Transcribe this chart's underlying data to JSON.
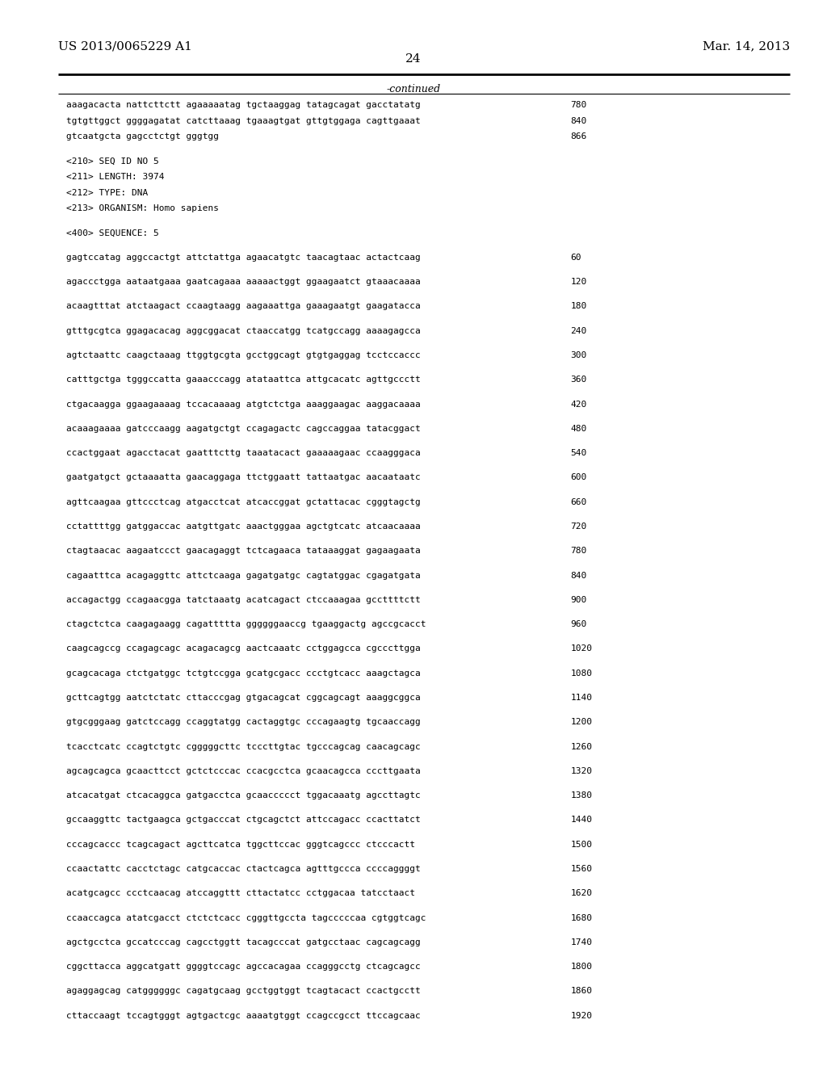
{
  "patent_number": "US 2013/0065229 A1",
  "date": "Mar. 14, 2013",
  "page_number": "24",
  "continued_label": "-continued",
  "background_color": "#ffffff",
  "text_color": "#000000",
  "font_size_header": 11,
  "font_size_body": 9,
  "lines": [
    {
      "text": "aaagacacta nattcttctt agaaaaatag tgctaaggag tatagcagat gacctatatg",
      "num": "780"
    },
    {
      "text": "tgtgttggct ggggagatat catcttaaag tgaaagtgat gttgtggaga cagttgaaat",
      "num": "840"
    },
    {
      "text": "gtcaatgcta gagcctctgt gggtgg",
      "num": "866"
    },
    {
      "text": "",
      "num": ""
    },
    {
      "text": "<210> SEQ ID NO 5",
      "num": ""
    },
    {
      "text": "<211> LENGTH: 3974",
      "num": ""
    },
    {
      "text": "<212> TYPE: DNA",
      "num": ""
    },
    {
      "text": "<213> ORGANISM: Homo sapiens",
      "num": ""
    },
    {
      "text": "",
      "num": ""
    },
    {
      "text": "<400> SEQUENCE: 5",
      "num": ""
    },
    {
      "text": "",
      "num": ""
    },
    {
      "text": "gagtccatag aggccactgt attctattga agaacatgtc taacagtaac actactcaag",
      "num": "60"
    },
    {
      "text": "",
      "num": ""
    },
    {
      "text": "agaccctgga aataatgaaa gaatcagaaa aaaaactggt ggaagaatct gtaaacaaaa",
      "num": "120"
    },
    {
      "text": "",
      "num": ""
    },
    {
      "text": "acaagtttat atctaagact ccaagtaagg aagaaattga gaaagaatgt gaagatacca",
      "num": "180"
    },
    {
      "text": "",
      "num": ""
    },
    {
      "text": "gtttgcgtca ggagacacag aggcggacat ctaaccatgg tcatgccagg aaaagagcca",
      "num": "240"
    },
    {
      "text": "",
      "num": ""
    },
    {
      "text": "agtctaattc caagctaaag ttggtgcgta gcctggcagt gtgtgaggag tcctccaccc",
      "num": "300"
    },
    {
      "text": "",
      "num": ""
    },
    {
      "text": "catttgctga tgggccatta gaaacccagg atataattca attgcacatc agttgccctt",
      "num": "360"
    },
    {
      "text": "",
      "num": ""
    },
    {
      "text": "ctgacaagga ggaagaaaag tccacaaaag atgtctctga aaaggaagac aaggacaaaa",
      "num": "420"
    },
    {
      "text": "",
      "num": ""
    },
    {
      "text": "acaaagaaaa gatcccaagg aagatgctgt ccagagactc cagccaggaa tatacggact",
      "num": "480"
    },
    {
      "text": "",
      "num": ""
    },
    {
      "text": "ccactggaat agacctacat gaatttcttg taaatacact gaaaaagaac ccaagggaca",
      "num": "540"
    },
    {
      "text": "",
      "num": ""
    },
    {
      "text": "gaatgatgct gctaaaatta gaacaggaga ttctggaatt tattaatgac aacaataatc",
      "num": "600"
    },
    {
      "text": "",
      "num": ""
    },
    {
      "text": "agttcaagaa gttccctcag atgacctcat atcaccggat gctattacac cgggtagctg",
      "num": "660"
    },
    {
      "text": "",
      "num": ""
    },
    {
      "text": "cctattttgg gatggaccac aatgttgatc aaactgggaa agctgtcatc atcaacaaaa",
      "num": "720"
    },
    {
      "text": "",
      "num": ""
    },
    {
      "text": "ctagtaacac aagaatccct gaacagaggt tctcagaaca tataaaggat gagaagaata",
      "num": "780"
    },
    {
      "text": "",
      "num": ""
    },
    {
      "text": "cagaatttca acagaggttc attctcaaga gagatgatgc cagtatggac cgagatgata",
      "num": "840"
    },
    {
      "text": "",
      "num": ""
    },
    {
      "text": "accagactgg ccagaacgga tatctaaatg acatcagact ctccaaagaa gccttttctt",
      "num": "900"
    },
    {
      "text": "",
      "num": ""
    },
    {
      "text": "ctagctctca caagagaagg cagattttta ggggggaaccg tgaaggactg agccgcacct",
      "num": "960"
    },
    {
      "text": "",
      "num": ""
    },
    {
      "text": "caagcagccg ccagagcagc acagacagcg aactcaaatc cctggagcca cgcccttgga",
      "num": "1020"
    },
    {
      "text": "",
      "num": ""
    },
    {
      "text": "gcagcacaga ctctgatggc tctgtccgga gcatgcgacc ccctgtcacc aaagctagca",
      "num": "1080"
    },
    {
      "text": "",
      "num": ""
    },
    {
      "text": "gcttcagtgg aatctctatc cttacccgag gtgacagcat cggcagcagt aaaggcggca",
      "num": "1140"
    },
    {
      "text": "",
      "num": ""
    },
    {
      "text": "gtgcgggaag gatctccagg ccaggtatgg cactaggtgc cccagaagtg tgcaaccagg",
      "num": "1200"
    },
    {
      "text": "",
      "num": ""
    },
    {
      "text": "tcacctcatc ccagtctgtc cgggggcttc tcccttgtac tgcccagcag caacagcagc",
      "num": "1260"
    },
    {
      "text": "",
      "num": ""
    },
    {
      "text": "agcagcagca gcaacttcct gctctcccac ccacgcctca gcaacagcca cccttgaata",
      "num": "1320"
    },
    {
      "text": "",
      "num": ""
    },
    {
      "text": "atcacatgat ctcacaggca gatgacctca gcaaccccct tggacaaatg agccttagtc",
      "num": "1380"
    },
    {
      "text": "",
      "num": ""
    },
    {
      "text": "gccaaggttc tactgaagca gctgacccat ctgcagctct attccagacc ccacttatct",
      "num": "1440"
    },
    {
      "text": "",
      "num": ""
    },
    {
      "text": "cccagcaccc tcagcagact agcttcatca tggcttccac gggtcagccc ctcccactt",
      "num": "1500"
    },
    {
      "text": "",
      "num": ""
    },
    {
      "text": "ccaactattc cacctctagc catgcaccac ctactcagca agtttgccca ccccaggggt",
      "num": "1560"
    },
    {
      "text": "",
      "num": ""
    },
    {
      "text": "acatgcagcc ccctcaacag atccaggttt cttactatcc cctggacaa tatcctaact",
      "num": "1620"
    },
    {
      "text": "",
      "num": ""
    },
    {
      "text": "ccaaccagca atatcgacct ctctctcacc cgggttgccta tagcccccaa cgtggtcagc",
      "num": "1680"
    },
    {
      "text": "",
      "num": ""
    },
    {
      "text": "agctgcctca gccatcccag cagcctggtt tacagcccat gatgcctaac cagcagcagg",
      "num": "1740"
    },
    {
      "text": "",
      "num": ""
    },
    {
      "text": "cggcttacca aggcatgatt ggggtccagc agccacagaa ccagggcctg ctcagcagcc",
      "num": "1800"
    },
    {
      "text": "",
      "num": ""
    },
    {
      "text": "agaggagcag catggggggc cagatgcaag gcctggtggt tcagtacact ccactgcctt",
      "num": "1860"
    },
    {
      "text": "",
      "num": ""
    },
    {
      "text": "cttaccaagt tccagtgggt agtgactcgc aaaatgtggt ccagccgcct ttccagcaac",
      "num": "1920"
    }
  ]
}
